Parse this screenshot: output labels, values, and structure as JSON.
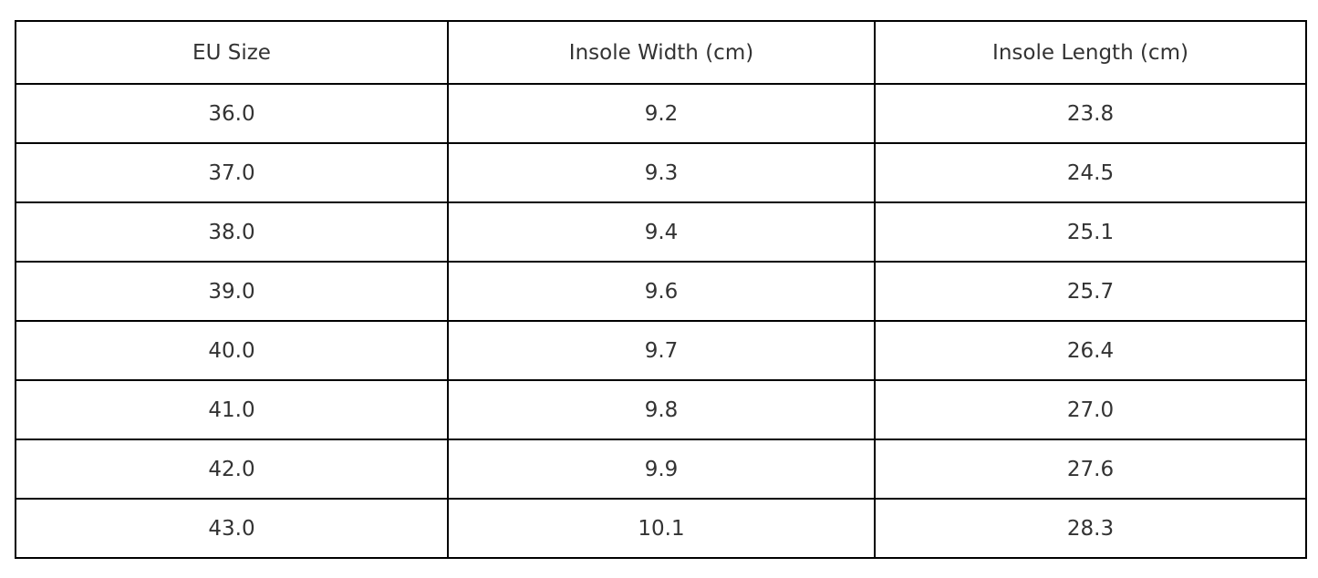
{
  "chart_data": {
    "type": "table",
    "columns": [
      "EU Size",
      "Insole Width (cm)",
      "Insole Length (cm)"
    ],
    "rows": [
      [
        "36.0",
        "9.2",
        "23.8"
      ],
      [
        "37.0",
        "9.3",
        "24.5"
      ],
      [
        "38.0",
        "9.4",
        "25.1"
      ],
      [
        "39.0",
        "9.6",
        "25.7"
      ],
      [
        "40.0",
        "9.7",
        "26.4"
      ],
      [
        "41.0",
        "9.8",
        "27.0"
      ],
      [
        "42.0",
        "9.9",
        "27.6"
      ],
      [
        "43.0",
        "10.1",
        "28.3"
      ]
    ],
    "layout": {
      "grid": "full-borders",
      "header_row": true,
      "cell_alignment": "center"
    }
  },
  "colors": {
    "border": "#000000",
    "text": "#333333",
    "background": "#ffffff"
  }
}
